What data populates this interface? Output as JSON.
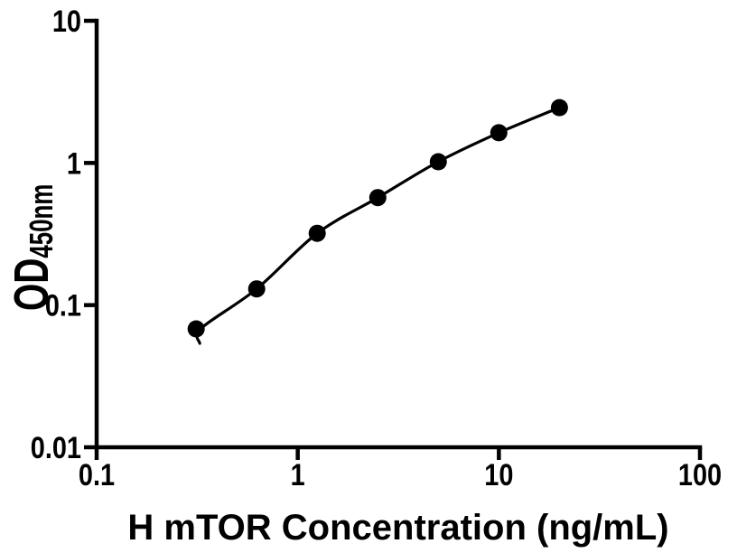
{
  "chart_data": {
    "type": "scatter",
    "title": "",
    "xlabel": "H mTOR Concentration (ng/mL)",
    "ylabel": {
      "main": "OD",
      "subscript": "450nm"
    },
    "x": [
      0.3125,
      0.625,
      1.25,
      2.5,
      5,
      10,
      20
    ],
    "y": [
      0.068,
      0.13,
      0.32,
      0.57,
      1.02,
      1.63,
      2.45
    ],
    "series_note": "single series: ELISA standard curve, black filled circles with smooth fitted line",
    "xscale": "log",
    "yscale": "log",
    "xlim": [
      0.1,
      100
    ],
    "ylim": [
      0.01,
      10
    ],
    "x_ticks": {
      "values": [
        0.1,
        1,
        10,
        100
      ],
      "labels": [
        "0.1",
        "1",
        "10",
        "100"
      ]
    },
    "y_ticks": {
      "values": [
        0.01,
        0.1,
        1,
        10
      ],
      "labels": [
        "0.01",
        "0.1",
        "1",
        "10"
      ]
    },
    "legend": "none",
    "grid": false,
    "colors": {
      "marker": "#000000",
      "line": "#000000",
      "axis": "#000000",
      "text": "#000000",
      "background": "#ffffff"
    }
  }
}
